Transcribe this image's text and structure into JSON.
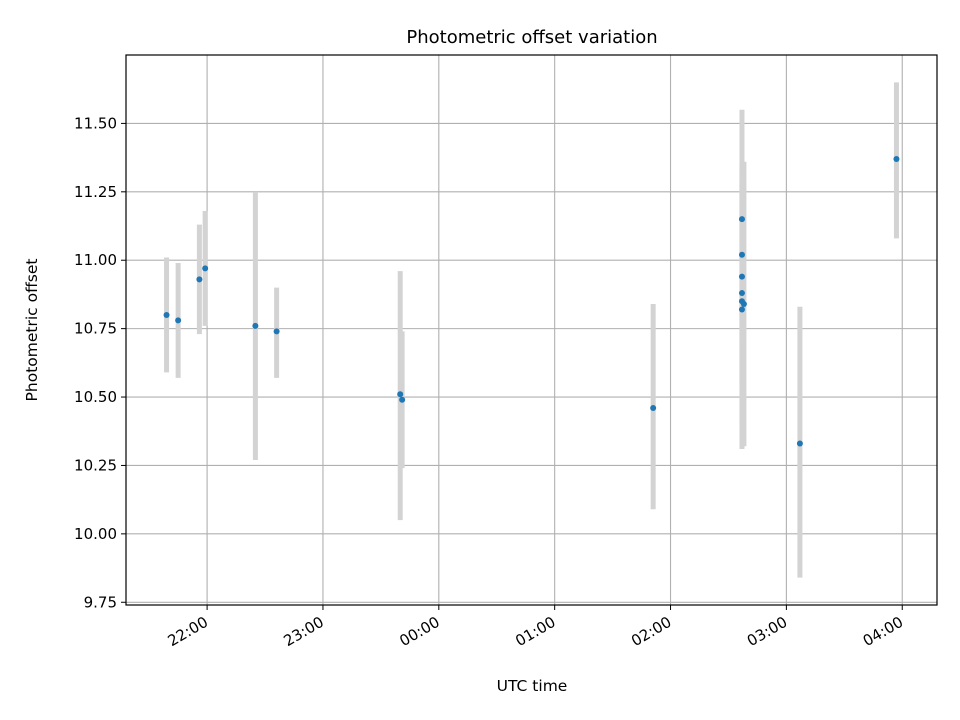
{
  "chart_data": {
    "type": "scatter",
    "title": "Photometric offset variation",
    "xlabel": "UTC time",
    "ylabel": "Photometric offset",
    "x_axis_kind": "time (hours, extends past midnight)",
    "xlim": [
      "21:18",
      "04:18"
    ],
    "ylim": [
      9.74,
      11.75
    ],
    "x_ticks": [
      "22:00",
      "23:00",
      "00:00",
      "01:00",
      "02:00",
      "03:00",
      "04:00"
    ],
    "y_ticks": [
      "9.75",
      "10.00",
      "10.25",
      "10.50",
      "10.75",
      "11.00",
      "11.25",
      "11.50"
    ],
    "grid": true,
    "marker_color": "#1f77b4",
    "errorbar_color": "#d3d3d3",
    "points": [
      {
        "t": "21:39",
        "y": 10.8,
        "lo": 10.59,
        "hi": 11.01
      },
      {
        "t": "21:45",
        "y": 10.78,
        "lo": 10.57,
        "hi": 10.99
      },
      {
        "t": "21:56",
        "y": 10.93,
        "lo": 10.73,
        "hi": 11.13
      },
      {
        "t": "21:59",
        "y": 10.97,
        "lo": 10.76,
        "hi": 11.18
      },
      {
        "t": "22:25",
        "y": 10.76,
        "lo": 10.27,
        "hi": 11.25
      },
      {
        "t": "22:36",
        "y": 10.74,
        "lo": 10.57,
        "hi": 10.9
      },
      {
        "t": "23:40",
        "y": 10.51,
        "lo": 10.05,
        "hi": 10.96
      },
      {
        "t": "23:41",
        "y": 10.49,
        "lo": 10.24,
        "hi": 10.74
      },
      {
        "t": "01:51",
        "y": 10.46,
        "lo": 10.09,
        "hi": 10.84
      },
      {
        "t": "02:37",
        "y": 11.15,
        "lo": 10.75,
        "hi": 11.55
      },
      {
        "t": "02:37",
        "y": 11.02,
        "lo": 10.7,
        "hi": 11.35
      },
      {
        "t": "02:37",
        "y": 10.94,
        "lo": 10.55,
        "hi": 11.33
      },
      {
        "t": "02:37",
        "y": 10.88,
        "lo": 10.4,
        "hi": 11.36
      },
      {
        "t": "02:37",
        "y": 10.85,
        "lo": 10.31,
        "hi": 11.3
      },
      {
        "t": "02:37",
        "y": 10.82,
        "lo": 10.35,
        "hi": 11.28
      },
      {
        "t": "02:38",
        "y": 10.84,
        "lo": 10.32,
        "hi": 11.36
      },
      {
        "t": "03:07",
        "y": 10.33,
        "lo": 9.84,
        "hi": 10.83
      },
      {
        "t": "03:57",
        "y": 11.37,
        "lo": 11.08,
        "hi": 11.65
      }
    ]
  }
}
